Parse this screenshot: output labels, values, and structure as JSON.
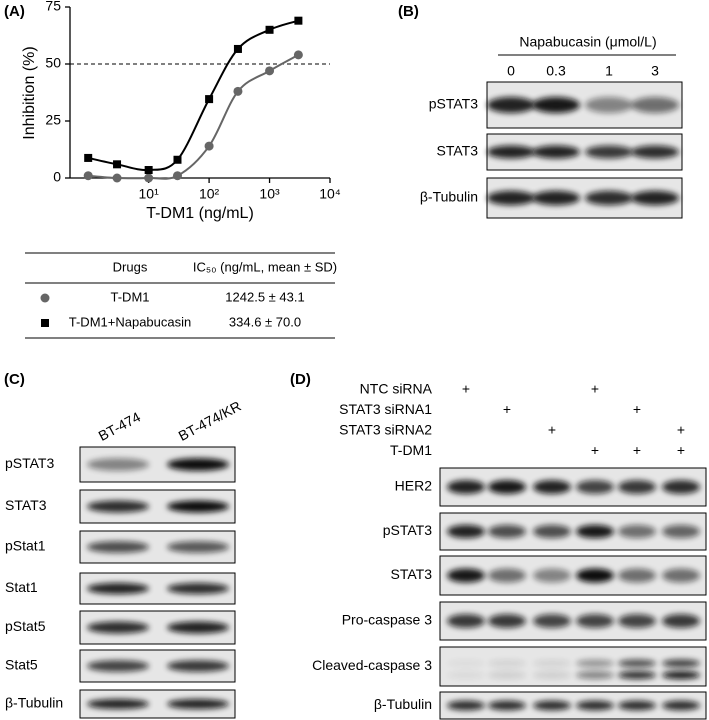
{
  "chart_data": {
    "type": "line",
    "xlabel": "T-DM1 (ng/mL)",
    "ylabel": "Inhibition (%)",
    "x": [
      1,
      3,
      10,
      30,
      100,
      300,
      1000,
      3000
    ],
    "series": [
      {
        "name": "T-DM1",
        "color": "#666666",
        "marker": "circle",
        "values": [
          1,
          0,
          0,
          1,
          14,
          38,
          47,
          54
        ]
      },
      {
        "name": "T-DM1+Napabucasin",
        "color": "#000000",
        "marker": "square",
        "values": [
          8.8,
          6,
          3.5,
          8,
          34.6,
          56.6,
          65,
          69
        ]
      }
    ],
    "xscale": "log",
    "xlim": [
      0.5,
      10000
    ],
    "xticks": [
      {
        "value": 10,
        "label": "10¹"
      },
      {
        "value": 100,
        "label": "10²"
      },
      {
        "value": 1000,
        "label": "10³"
      },
      {
        "value": 10000,
        "label": "10⁴"
      }
    ],
    "ylim": [
      0,
      75
    ],
    "yticks": [
      0,
      25,
      50,
      75
    ],
    "reference_line": 50
  },
  "panel_labels": [
    "(A)",
    "(B)",
    "(C)",
    "(D)"
  ],
  "table": {
    "header": [
      "Drugs",
      "IC₅₀ (ng/mL, mean ± SD)"
    ],
    "rows": [
      [
        "T-DM1",
        "1242.5 ± 43.1"
      ],
      [
        "T-DM1+Napabucasin",
        "334.6 ± 70.0"
      ]
    ]
  },
  "panel_b": {
    "treatment": "Napabucasin (μmol/L)",
    "lanes": [
      "0",
      "0.3",
      "1",
      "3"
    ],
    "rows": [
      "pSTAT3",
      "STAT3",
      "β-Tubulin"
    ]
  },
  "panel_c": {
    "lanes": [
      "BT-474",
      "BT-474/KR"
    ],
    "rows": [
      "pSTAT3",
      "STAT3",
      "pStat1",
      "Stat1",
      "pStat5",
      "Stat5",
      "β-Tubulin"
    ]
  },
  "panel_d": {
    "treatments": [
      {
        "name": "NTC siRNA",
        "marks": [
          "+",
          null,
          null,
          "+",
          null,
          null
        ]
      },
      {
        "name": "STAT3 siRNA1",
        "marks": [
          null,
          "+",
          null,
          null,
          "+",
          null
        ]
      },
      {
        "name": "STAT3 siRNA2",
        "marks": [
          null,
          null,
          "+",
          null,
          null,
          "+"
        ]
      },
      {
        "name": "T-DM1",
        "marks": [
          null,
          null,
          null,
          "+",
          "+",
          "+"
        ]
      }
    ],
    "rows": [
      "HER2",
      "pSTAT3",
      "STAT3",
      "Pro-caspase 3",
      "Cleaved-caspase 3",
      "β-Tubulin"
    ]
  }
}
